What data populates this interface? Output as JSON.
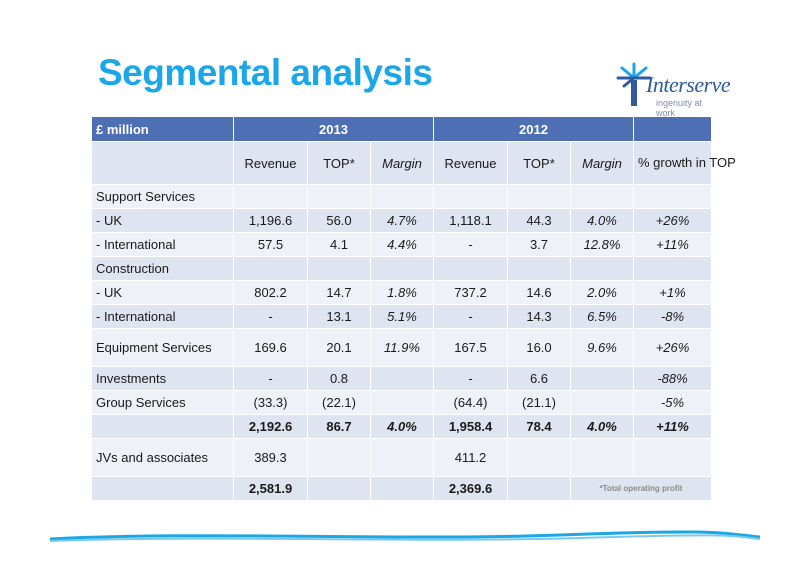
{
  "title": "Segmental analysis",
  "logo": {
    "name": "Interserve",
    "tagline": "ingenuity at work"
  },
  "table": {
    "header": {
      "label": "£ million",
      "year1": "2013",
      "year2": "2012"
    },
    "subheader": [
      "Revenue",
      "TOP*",
      "Margin",
      "Revenue",
      "TOP*",
      "Margin",
      "% growth in TOP"
    ],
    "rows": [
      [
        "Support Services",
        "",
        "",
        "",
        "",
        "",
        "",
        ""
      ],
      [
        "- UK",
        "1,196.6",
        "56.0",
        "4.7%",
        "1,118.1",
        "44.3",
        "4.0%",
        "+26%"
      ],
      [
        "- International",
        "57.5",
        "4.1",
        "4.4%",
        "-",
        "3.7",
        "12.8%",
        "+11%"
      ],
      [
        "Construction",
        "",
        "",
        "",
        "",
        "",
        "",
        ""
      ],
      [
        "- UK",
        "802.2",
        "14.7",
        "1.8%",
        "737.2",
        "14.6",
        "2.0%",
        "+1%"
      ],
      [
        "- International",
        "-",
        "13.1",
        "5.1%",
        "-",
        "14.3",
        "6.5%",
        "-8%"
      ],
      [
        "Equipment Services",
        "169.6",
        "20.1",
        "11.9%",
        "167.5",
        "16.0",
        "9.6%",
        "+26%"
      ],
      [
        "Investments",
        "-",
        "0.8",
        "",
        "-",
        "6.6",
        "",
        "-88%"
      ],
      [
        "Group Services",
        "(33.3)",
        "(22.1)",
        "",
        "(64.4)",
        "(21.1)",
        "",
        "-5%"
      ],
      [
        "",
        "2,192.6",
        "86.7",
        "4.0%",
        "1,958.4",
        "78.4",
        "4.0%",
        "+11%"
      ],
      [
        "JVs and associates",
        "389.3",
        "",
        "",
        "411.2",
        "",
        "",
        ""
      ],
      [
        "",
        "2,581.9",
        "",
        "",
        "2,369.6",
        "",
        "",
        ""
      ]
    ],
    "footnote": "*Total operating profit"
  }
}
